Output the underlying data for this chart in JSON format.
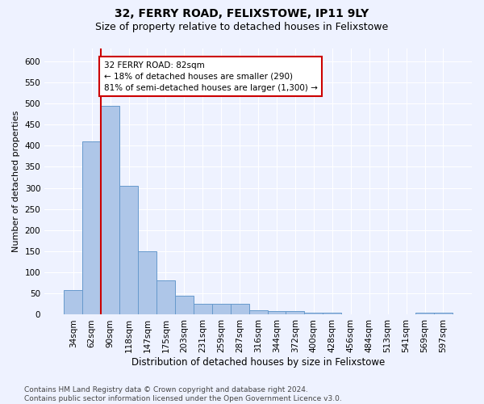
{
  "title": "32, FERRY ROAD, FELIXSTOWE, IP11 9LY",
  "subtitle": "Size of property relative to detached houses in Felixstowe",
  "xlabel": "Distribution of detached houses by size in Felixstowe",
  "ylabel": "Number of detached properties",
  "categories": [
    "34sqm",
    "62sqm",
    "90sqm",
    "118sqm",
    "147sqm",
    "175sqm",
    "203sqm",
    "231sqm",
    "259sqm",
    "287sqm",
    "316sqm",
    "344sqm",
    "372sqm",
    "400sqm",
    "428sqm",
    "456sqm",
    "484sqm",
    "513sqm",
    "541sqm",
    "569sqm",
    "597sqm"
  ],
  "values": [
    58,
    410,
    495,
    305,
    150,
    82,
    45,
    25,
    25,
    25,
    10,
    8,
    8,
    5,
    5,
    1,
    0,
    0,
    0,
    5,
    5
  ],
  "bar_color": "#aec6e8",
  "bar_edge_color": "#6699cc",
  "highlight_line_color": "#cc0000",
  "annotation_box_color": "#cc0000",
  "annotation_text": "32 FERRY ROAD: 82sqm\n← 18% of detached houses are smaller (290)\n81% of semi-detached houses are larger (1,300) →",
  "ylim": [
    0,
    630
  ],
  "yticks": [
    0,
    50,
    100,
    150,
    200,
    250,
    300,
    350,
    400,
    450,
    500,
    550,
    600
  ],
  "background_color": "#eef2ff",
  "grid_color": "#ffffff",
  "footnote": "Contains HM Land Registry data © Crown copyright and database right 2024.\nContains public sector information licensed under the Open Government Licence v3.0.",
  "title_fontsize": 10,
  "subtitle_fontsize": 9,
  "xlabel_fontsize": 8.5,
  "ylabel_fontsize": 8,
  "tick_fontsize": 7.5,
  "annot_fontsize": 7.5,
  "footnote_fontsize": 6.5
}
